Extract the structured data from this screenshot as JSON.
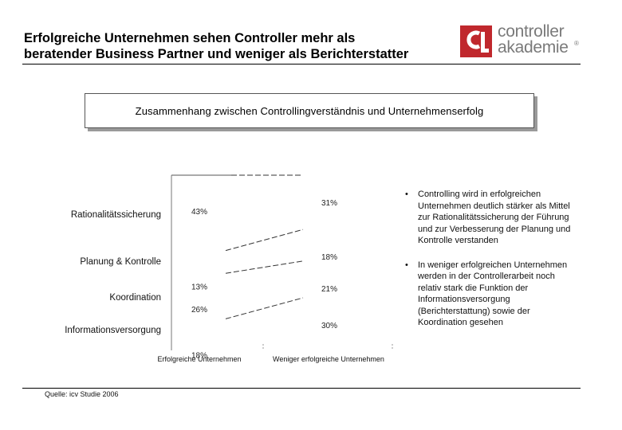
{
  "header": {
    "title_line1": "Erfolgreiche Unternehmen sehen Controller mehr als",
    "title_line2": "beratender Business Partner und weniger als Berichterstatter",
    "logo_line1": "controller",
    "logo_line2": "akademie",
    "logo_registered": "®"
  },
  "subtitle": "Zusammenhang zwischen Controllingverständnis und Unternehmenserfolg",
  "chart_data": {
    "type": "bar",
    "categories": [
      "Rationalitätssicherung",
      "Planung & Kontrolle",
      "Koordination",
      "Informationsversorgung"
    ],
    "series": [
      {
        "name": "Erfolgreiche Unternehmen",
        "values": [
          43,
          13,
          26,
          18
        ],
        "labels": [
          "43%",
          "13%",
          "26%",
          "18%"
        ]
      },
      {
        "name": "Weniger erfolgreiche Unternehmen",
        "values": [
          31,
          18,
          21,
          30
        ],
        "labels": [
          "31%",
          "18%",
          "21%",
          "30%"
        ]
      }
    ]
  },
  "bullets": [
    {
      "marker": "•",
      "text": "Controlling wird in erfolgreichen Unternehmen deutlich stärker als Mittel zur Rationalitätssicherung der Führung und zur Verbesserung der Planung und Kontrolle verstanden"
    },
    {
      "marker": "•",
      "text": "In weniger erfolgreichen Unternehmen werden in der Controllerarbeit noch relativ stark die Funktion der Informationsversorgung (Berichterstattung) sowie der Koordination gesehen"
    }
  ],
  "footer": {
    "source": "Quelle: icv Studie 2006"
  }
}
